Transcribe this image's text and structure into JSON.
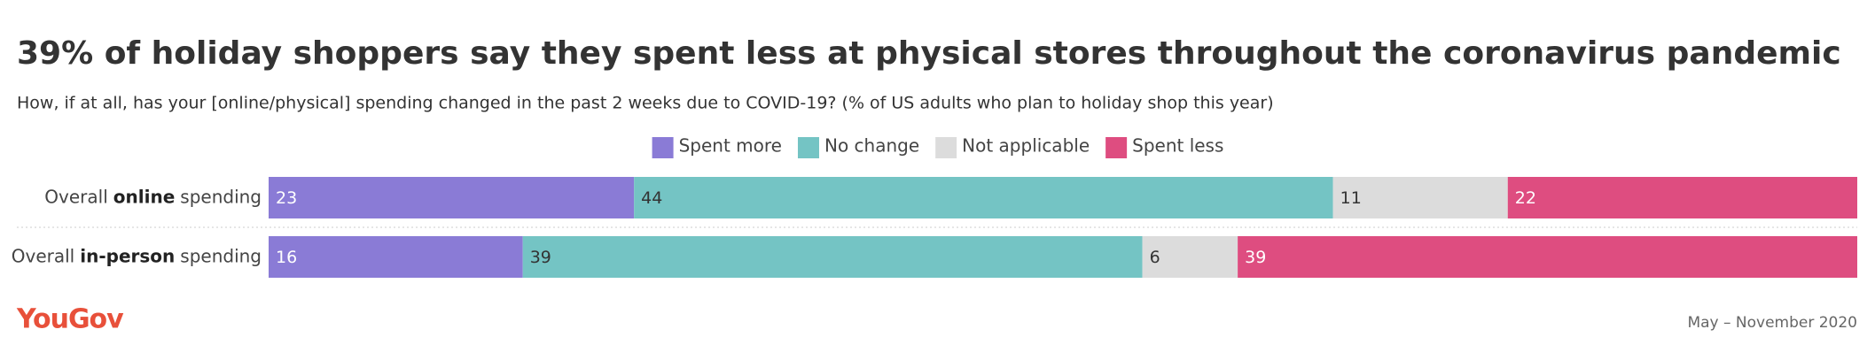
{
  "chart_data": {
    "type": "stacked-bar-horizontal",
    "title": "39% of holiday shoppers say they spent less at physical stores throughout the coronavirus pandemic",
    "subtitle": "How, if at all, has your [online/physical] spending changed in the past 2 weeks due to COVID-19? (% of US adults who plan to holiday shop this year)",
    "categories": [
      [
        "Overall",
        "online",
        "spending"
      ],
      [
        "Overall",
        "in-person",
        "spending"
      ]
    ],
    "series": [
      {
        "name": "Spent more",
        "color": "#8a7bd6",
        "label_color": "#ffffff",
        "values": [
          23,
          16
        ]
      },
      {
        "name": "No change",
        "color": "#74c4c4",
        "label_color": "#333333",
        "values": [
          44,
          39
        ]
      },
      {
        "name": "Not applicable",
        "color": "#dcdcdc",
        "label_color": "#333333",
        "values": [
          11,
          6
        ]
      },
      {
        "name": "Spent less",
        "color": "#de4d80",
        "label_color": "#ffffff",
        "values": [
          22,
          39
        ]
      }
    ],
    "xlim": [
      0,
      100
    ],
    "logo": "YouGov",
    "date": "May – November 2020"
  }
}
